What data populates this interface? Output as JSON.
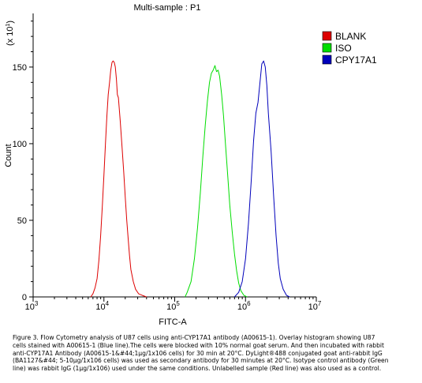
{
  "chart_data": {
    "type": "line",
    "title": "Multi-sample : P1",
    "xlabel": "FITC-A",
    "ylabel": "Count",
    "y_multiplier": "(x 10",
    "y_multiplier_exp": "1",
    "x_scale": "log",
    "xlim": [
      1000,
      10000000
    ],
    "ylim": [
      0,
      185
    ],
    "x_ticks": [
      {
        "value": 1000,
        "base": "10",
        "exp": "3"
      },
      {
        "value": 10000,
        "base": "10",
        "exp": "4"
      },
      {
        "value": 100000,
        "base": "10",
        "exp": "5"
      },
      {
        "value": 1000000,
        "base": "10",
        "exp": "6"
      },
      {
        "value": 10000000,
        "base": "10",
        "exp": "7"
      }
    ],
    "y_ticks": [
      0,
      50,
      100,
      150
    ],
    "legend_position": "top-right",
    "series": [
      {
        "name": "BLANK",
        "color": "#dd0000",
        "points": [
          [
            6500,
            0
          ],
          [
            7000,
            2
          ],
          [
            7500,
            6
          ],
          [
            8000,
            12
          ],
          [
            8500,
            24
          ],
          [
            9000,
            40
          ],
          [
            9500,
            60
          ],
          [
            10000,
            80
          ],
          [
            10500,
            100
          ],
          [
            11000,
            118
          ],
          [
            11500,
            132
          ],
          [
            12000,
            140
          ],
          [
            12500,
            148
          ],
          [
            13000,
            153
          ],
          [
            13500,
            154
          ],
          [
            14000,
            153
          ],
          [
            14500,
            150
          ],
          [
            15000,
            142
          ],
          [
            15500,
            132
          ],
          [
            16000,
            130
          ],
          [
            17000,
            115
          ],
          [
            18000,
            98
          ],
          [
            19000,
            82
          ],
          [
            20000,
            65
          ],
          [
            21000,
            50
          ],
          [
            22000,
            38
          ],
          [
            23000,
            27
          ],
          [
            24000,
            18
          ],
          [
            26000,
            10
          ],
          [
            28000,
            5
          ],
          [
            31000,
            2
          ],
          [
            35000,
            1
          ],
          [
            40000,
            0
          ]
        ]
      },
      {
        "name": "ISO",
        "color": "#00dd00",
        "points": [
          [
            140000,
            0
          ],
          [
            150000,
            3
          ],
          [
            170000,
            10
          ],
          [
            190000,
            25
          ],
          [
            210000,
            45
          ],
          [
            230000,
            68
          ],
          [
            250000,
            92
          ],
          [
            270000,
            112
          ],
          [
            290000,
            128
          ],
          [
            310000,
            140
          ],
          [
            330000,
            146
          ],
          [
            350000,
            148
          ],
          [
            370000,
            151
          ],
          [
            390000,
            147
          ],
          [
            410000,
            148
          ],
          [
            430000,
            144
          ],
          [
            460000,
            132
          ],
          [
            490000,
            118
          ],
          [
            520000,
            100
          ],
          [
            560000,
            80
          ],
          [
            600000,
            60
          ],
          [
            650000,
            42
          ],
          [
            700000,
            28
          ],
          [
            750000,
            17
          ],
          [
            800000,
            9
          ],
          [
            860000,
            4
          ],
          [
            950000,
            1
          ],
          [
            1050000,
            0
          ]
        ]
      },
      {
        "name": "CPY17A1",
        "color": "#0000bb",
        "points": [
          [
            700000,
            0
          ],
          [
            800000,
            3
          ],
          [
            900000,
            10
          ],
          [
            1000000,
            25
          ],
          [
            1100000,
            48
          ],
          [
            1200000,
            75
          ],
          [
            1300000,
            102
          ],
          [
            1400000,
            120
          ],
          [
            1500000,
            127
          ],
          [
            1600000,
            140
          ],
          [
            1700000,
            152
          ],
          [
            1800000,
            154
          ],
          [
            1900000,
            150
          ],
          [
            2000000,
            138
          ],
          [
            2100000,
            120
          ],
          [
            2300000,
            95
          ],
          [
            2500000,
            65
          ],
          [
            2700000,
            40
          ],
          [
            2900000,
            22
          ],
          [
            3100000,
            12
          ],
          [
            3400000,
            5
          ],
          [
            3800000,
            1
          ],
          [
            4200000,
            0
          ]
        ]
      }
    ]
  },
  "caption_lines": [
    "Figure 3. Flow Cytometry analysis of U87 cells using anti-CYP17A1 antibody (A00615-1).  Overlay histogram showing U87",
    "cells stained with A00615-1 (Blue line).The cells were blocked with 10% normal goat serum. And then incubated with rabbit",
    "anti-CYP17A1 Antibody (A00615-1&#44;1µg/1x106 cells) for 30 min at 20°C. DyLight®488 conjugated goat anti-rabbit IgG",
    "(BA1127&#44; 5-10µg/1x106 cells) was used as secondary antibody for 30 minutes at 20°C. Isotype control antibody (Green",
    "line) was rabbit IgG (1µg/1x106) used under the same conditions. Unlabelled sample (Red line) was also used as a control."
  ]
}
